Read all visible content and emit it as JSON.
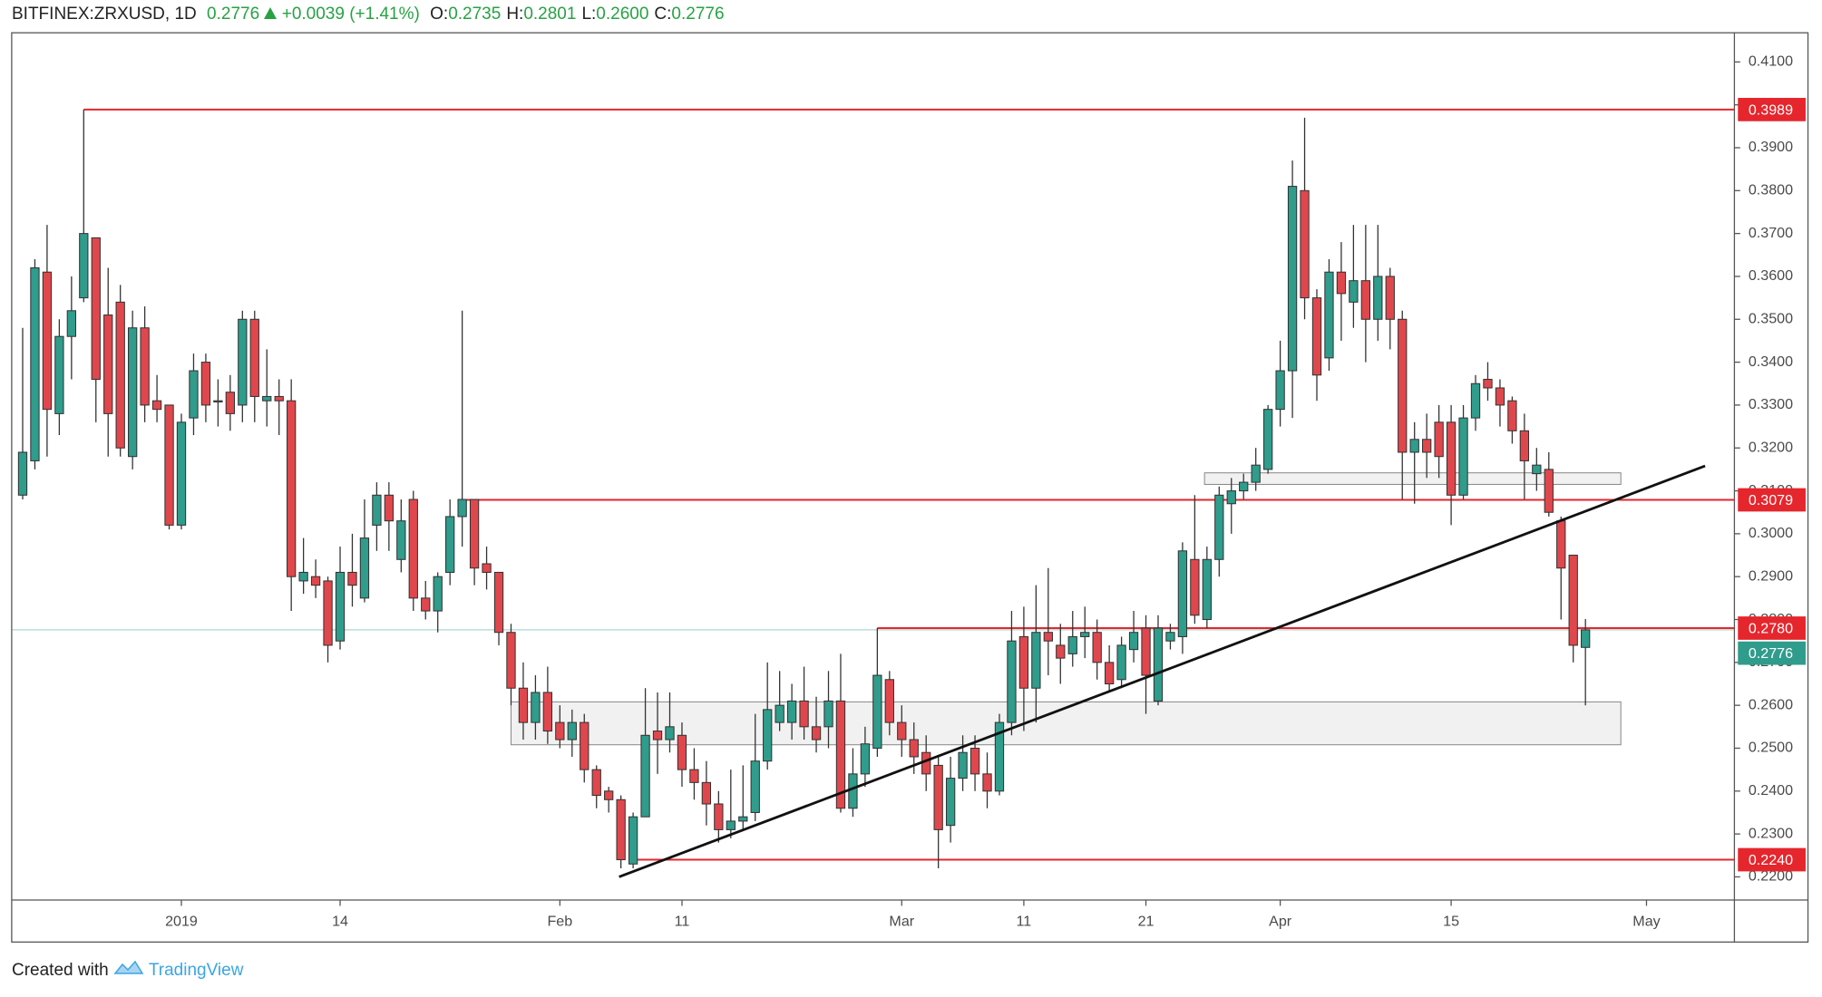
{
  "chart_data": {
    "type": "candlestick",
    "title": "BITFINEX:ZRXUSD, 1D",
    "last": "0.2776",
    "change": "+0.0039 (+1.41%)",
    "ohlc_labels": [
      {
        "label": "O:",
        "value": "0.2735"
      },
      {
        "label": "H:",
        "value": "0.2801"
      },
      {
        "label": "L:",
        "value": "0.2600"
      },
      {
        "label": "C:",
        "value": "0.2776"
      }
    ],
    "up_color": "#2f9c8c",
    "down_color": "#e0474c",
    "open": [
      0.309,
      0.317,
      0.361,
      0.328,
      0.346,
      0.355,
      0.369,
      0.351,
      0.354,
      0.318,
      0.348,
      0.331,
      0.33,
      0.302,
      0.327,
      0.34,
      0.331,
      0.333,
      0.33,
      0.35,
      0.331,
      0.332,
      0.331,
      0.289,
      0.29,
      0.289,
      0.275,
      0.291,
      0.285,
      0.302,
      0.309,
      0.294,
      0.308,
      0.285,
      0.282,
      0.291,
      0.304,
      0.308,
      0.293,
      0.291,
      0.277,
      0.264,
      0.256,
      0.263,
      0.256,
      0.252,
      0.256,
      0.245,
      0.24,
      0.238,
      0.223,
      0.234,
      0.254,
      0.252,
      0.253,
      0.245,
      0.242,
      0.237,
      0.231,
      0.233,
      0.235,
      0.247,
      0.256,
      0.256,
      0.261,
      0.255,
      0.255,
      0.261,
      0.236,
      0.244,
      0.25,
      0.266,
      0.256,
      0.252,
      0.249,
      0.246,
      0.232,
      0.243,
      0.25,
      0.244,
      0.24,
      0.256,
      0.276,
      0.264,
      0.277,
      0.274,
      0.272,
      0.276,
      0.277,
      0.27,
      0.266,
      0.273,
      0.278,
      0.261,
      0.275,
      0.276,
      0.294,
      0.28,
      0.294,
      0.307,
      0.31,
      0.312,
      0.315,
      0.329,
      0.338,
      0.38,
      0.355,
      0.341,
      0.361,
      0.354,
      0.359,
      0.35,
      0.36,
      0.35,
      0.319,
      0.322,
      0.326,
      0.326,
      0.309,
      0.327,
      0.336,
      0.334,
      0.331,
      0.324,
      0.314,
      0.315,
      0.303,
      0.295,
      0.2735
    ],
    "high": [
      0.348,
      0.364,
      0.372,
      0.35,
      0.36,
      0.3989,
      0.369,
      0.362,
      0.358,
      0.352,
      0.353,
      0.337,
      0.33,
      0.328,
      0.342,
      0.342,
      0.336,
      0.337,
      0.352,
      0.352,
      0.343,
      0.336,
      0.336,
      0.299,
      0.294,
      0.29,
      0.297,
      0.3,
      0.308,
      0.312,
      0.312,
      0.308,
      0.31,
      0.289,
      0.291,
      0.308,
      0.352,
      0.308,
      0.297,
      0.291,
      0.279,
      0.27,
      0.267,
      0.269,
      0.26,
      0.259,
      0.258,
      0.246,
      0.241,
      0.239,
      0.235,
      0.264,
      0.263,
      0.263,
      0.256,
      0.25,
      0.247,
      0.24,
      0.245,
      0.246,
      0.258,
      0.27,
      0.268,
      0.265,
      0.269,
      0.262,
      0.268,
      0.272,
      0.25,
      0.255,
      0.278,
      0.268,
      0.26,
      0.256,
      0.253,
      0.248,
      0.248,
      0.253,
      0.253,
      0.249,
      0.258,
      0.282,
      0.283,
      0.288,
      0.292,
      0.279,
      0.282,
      0.283,
      0.28,
      0.274,
      0.276,
      0.282,
      0.281,
      0.281,
      0.279,
      0.298,
      0.309,
      0.297,
      0.311,
      0.313,
      0.314,
      0.32,
      0.33,
      0.345,
      0.387,
      0.397,
      0.357,
      0.364,
      0.368,
      0.372,
      0.372,
      0.372,
      0.362,
      0.352,
      0.326,
      0.328,
      0.33,
      0.33,
      0.33,
      0.337,
      0.34,
      0.336,
      0.332,
      0.328,
      0.32,
      0.319,
      0.304,
      0.295,
      0.2801
    ],
    "low": [
      0.308,
      0.315,
      0.318,
      0.323,
      0.336,
      0.354,
      0.326,
      0.318,
      0.318,
      0.315,
      0.326,
      0.326,
      0.301,
      0.301,
      0.323,
      0.326,
      0.325,
      0.324,
      0.326,
      0.326,
      0.325,
      0.323,
      0.282,
      0.286,
      0.285,
      0.27,
      0.273,
      0.283,
      0.284,
      0.296,
      0.296,
      0.291,
      0.282,
      0.28,
      0.277,
      0.288,
      0.297,
      0.288,
      0.287,
      0.274,
      0.26,
      0.252,
      0.252,
      0.251,
      0.25,
      0.248,
      0.242,
      0.236,
      0.235,
      0.222,
      0.222,
      0.234,
      0.244,
      0.249,
      0.241,
      0.238,
      0.232,
      0.228,
      0.229,
      0.231,
      0.233,
      0.245,
      0.254,
      0.252,
      0.252,
      0.249,
      0.25,
      0.235,
      0.234,
      0.241,
      0.248,
      0.253,
      0.248,
      0.244,
      0.24,
      0.222,
      0.228,
      0.24,
      0.24,
      0.236,
      0.239,
      0.253,
      0.254,
      0.256,
      0.267,
      0.265,
      0.269,
      0.271,
      0.266,
      0.263,
      0.264,
      0.27,
      0.258,
      0.26,
      0.273,
      0.272,
      0.279,
      0.278,
      0.29,
      0.3,
      0.308,
      0.31,
      0.314,
      0.325,
      0.327,
      0.35,
      0.331,
      0.338,
      0.345,
      0.348,
      0.34,
      0.345,
      0.343,
      0.308,
      0.307,
      0.313,
      0.313,
      0.302,
      0.308,
      0.324,
      0.331,
      0.325,
      0.321,
      0.308,
      0.31,
      0.304,
      0.28,
      0.27,
      0.26
    ],
    "close": [
      0.319,
      0.362,
      0.329,
      0.346,
      0.352,
      0.37,
      0.336,
      0.328,
      0.32,
      0.348,
      0.33,
      0.329,
      0.302,
      0.326,
      0.338,
      0.33,
      0.331,
      0.328,
      0.35,
      0.332,
      0.332,
      0.331,
      0.29,
      0.291,
      0.288,
      0.274,
      0.291,
      0.288,
      0.299,
      0.309,
      0.303,
      0.303,
      0.285,
      0.282,
      0.29,
      0.304,
      0.308,
      0.292,
      0.291,
      0.277,
      0.264,
      0.256,
      0.263,
      0.254,
      0.252,
      0.256,
      0.245,
      0.239,
      0.238,
      0.224,
      0.234,
      0.253,
      0.252,
      0.255,
      0.245,
      0.242,
      0.237,
      0.231,
      0.233,
      0.234,
      0.247,
      0.259,
      0.26,
      0.261,
      0.255,
      0.252,
      0.261,
      0.236,
      0.244,
      0.251,
      0.267,
      0.256,
      0.252,
      0.248,
      0.244,
      0.231,
      0.243,
      0.249,
      0.244,
      0.24,
      0.256,
      0.275,
      0.264,
      0.277,
      0.275,
      0.271,
      0.276,
      0.277,
      0.27,
      0.265,
      0.274,
      0.277,
      0.267,
      0.278,
      0.277,
      0.296,
      0.281,
      0.294,
      0.309,
      0.31,
      0.312,
      0.316,
      0.329,
      0.338,
      0.381,
      0.355,
      0.337,
      0.361,
      0.356,
      0.359,
      0.35,
      0.36,
      0.35,
      0.319,
      0.322,
      0.319,
      0.318,
      0.309,
      0.327,
      0.335,
      0.334,
      0.33,
      0.324,
      0.317,
      0.316,
      0.305,
      0.292,
      0.274,
      0.2776
    ],
    "xlim": [
      -0.9,
      140.2
    ],
    "xticks": [
      {
        "value": 13,
        "label": "2019"
      },
      {
        "value": 26,
        "label": "14"
      },
      {
        "value": 44,
        "label": "Feb"
      },
      {
        "value": 54,
        "label": "11"
      },
      {
        "value": 72,
        "label": "Mar"
      },
      {
        "value": 82,
        "label": "11"
      },
      {
        "value": 92,
        "label": "21"
      },
      {
        "value": 103,
        "label": "Apr"
      },
      {
        "value": 117,
        "label": "15"
      },
      {
        "value": 133,
        "label": "May"
      }
    ],
    "ylim": [
      0.2146,
      0.4168
    ],
    "yticks": [
      {
        "value": 0.22,
        "label": "0.2200"
      },
      {
        "value": 0.23,
        "label": "0.2300"
      },
      {
        "value": 0.24,
        "label": "0.2400"
      },
      {
        "value": 0.25,
        "label": "0.2500"
      },
      {
        "value": 0.26,
        "label": "0.2600"
      },
      {
        "value": 0.27,
        "label": "0.2700"
      },
      {
        "value": 0.28,
        "label": "0.2800"
      },
      {
        "value": 0.29,
        "label": "0.2900"
      },
      {
        "value": 0.3,
        "label": "0.3000"
      },
      {
        "value": 0.31,
        "label": "0.3100"
      },
      {
        "value": 0.32,
        "label": "0.3200"
      },
      {
        "value": 0.33,
        "label": "0.3300"
      },
      {
        "value": 0.34,
        "label": "0.3400"
      },
      {
        "value": 0.35,
        "label": "0.3500"
      },
      {
        "value": 0.36,
        "label": "0.3600"
      },
      {
        "value": 0.37,
        "label": "0.3700"
      },
      {
        "value": 0.38,
        "label": "0.3800"
      },
      {
        "value": 0.39,
        "label": "0.3900"
      },
      {
        "value": 0.4,
        "label": "0.4000"
      },
      {
        "value": 0.41,
        "label": "0.4100"
      }
    ],
    "levels": [
      {
        "value": 0.3989,
        "label": "0.3989",
        "start": 5
      },
      {
        "value": 0.3079,
        "label": "0.3079",
        "start": 36
      },
      {
        "value": 0.278,
        "label": "0.2780",
        "start": 70
      },
      {
        "value": 0.224,
        "label": "0.2240",
        "start": 50
      }
    ],
    "level_color": "#e5262d",
    "last_price": {
      "value": 0.2776,
      "label": "0.2776",
      "color": "#2f9c8c"
    },
    "trendline": {
      "x": [
        48.85,
        137.8
      ],
      "y": [
        0.22,
        0.3158
      ],
      "color": "#111111"
    },
    "zones": [
      {
        "x": [
          40.0,
          130.9
        ],
        "y": [
          0.2508,
          0.2608
        ]
      },
      {
        "x": [
          96.8,
          130.9
        ],
        "y": [
          0.3115,
          0.3142
        ]
      }
    ]
  },
  "footer": {
    "text": "Created with",
    "brand": "TradingView"
  }
}
